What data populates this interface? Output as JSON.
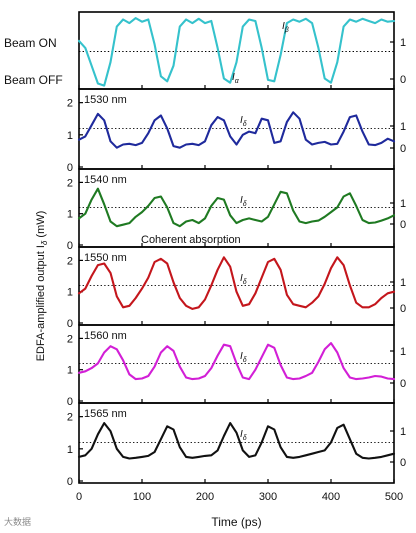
{
  "chart_data": {
    "type": "line",
    "xlabel": "Time (ps)",
    "ylabel": "EDFA-amplified output I",
    "ylabel_sub": "δ",
    "ylabel_unit": " (mW)",
    "xlim": [
      0,
      500
    ],
    "x_ticks": [
      "0",
      "100",
      "200",
      "300",
      "400",
      "500"
    ],
    "annotation": "Coherent absorption",
    "panels": [
      {
        "id": "beam",
        "label_top": "Beam ON",
        "label_bottom": "Beam OFF",
        "series_label": "I",
        "series_label_sub": "β",
        "curve_label": "I",
        "curve_label_sub": "α",
        "color": "#35c2cc",
        "ylim": [
          0,
          1
        ],
        "right_ticks": [
          "1",
          "0"
        ],
        "reference_level": 0.5,
        "x": [
          0,
          10,
          20,
          30,
          40,
          50,
          60,
          70,
          80,
          90,
          100,
          110,
          120,
          130,
          140,
          150,
          160,
          170,
          180,
          190,
          200,
          210,
          220,
          230,
          240,
          250,
          260,
          270,
          280,
          290,
          300,
          310,
          320,
          330,
          340,
          350,
          360,
          370,
          380,
          390,
          400,
          410,
          420,
          430,
          440,
          450,
          460,
          470,
          480,
          490,
          500
        ],
        "values": [
          0.65,
          0.55,
          0.3,
          0.05,
          0.02,
          0.35,
          0.85,
          0.95,
          0.9,
          0.97,
          0.92,
          0.95,
          0.6,
          0.15,
          0.08,
          0.3,
          0.85,
          0.95,
          0.9,
          0.96,
          0.9,
          0.93,
          0.55,
          0.12,
          0.06,
          0.35,
          0.85,
          0.95,
          0.93,
          0.55,
          0.1,
          0.08,
          0.45,
          0.9,
          0.95,
          0.92,
          0.96,
          0.9,
          0.55,
          0.12,
          0.06,
          0.35,
          0.85,
          0.95,
          0.92,
          0.96,
          0.93,
          0.9,
          0.95,
          0.92,
          0.93
        ]
      },
      {
        "id": "1530",
        "wavelength": "1530 nm",
        "series_label": "I",
        "series_label_sub": "δ",
        "color": "#1f2a9c",
        "ylim": [
          0,
          2.3
        ],
        "left_ticks": [
          "2",
          "1",
          "0"
        ],
        "right_ticks": [
          "1",
          "0"
        ],
        "reference_level": 1.2,
        "x": [
          0,
          10,
          20,
          30,
          40,
          50,
          60,
          70,
          80,
          90,
          100,
          110,
          120,
          130,
          140,
          150,
          160,
          170,
          180,
          190,
          200,
          210,
          220,
          230,
          240,
          250,
          260,
          270,
          280,
          290,
          300,
          310,
          320,
          330,
          340,
          350,
          360,
          370,
          380,
          390,
          400,
          410,
          420,
          430,
          440,
          450,
          460,
          470,
          480,
          490,
          500
        ],
        "values": [
          0.85,
          0.95,
          1.3,
          1.65,
          1.45,
          0.8,
          0.6,
          0.7,
          0.72,
          0.68,
          0.75,
          1.05,
          1.45,
          1.6,
          1.2,
          0.65,
          0.6,
          0.7,
          0.72,
          0.68,
          0.8,
          1.3,
          1.55,
          1.45,
          0.95,
          0.7,
          1.0,
          1.1,
          1.05,
          1.5,
          1.45,
          0.75,
          0.8,
          1.4,
          1.7,
          1.5,
          0.85,
          0.7,
          0.75,
          0.78,
          0.7,
          0.72,
          1.1,
          1.55,
          1.6,
          1.1,
          0.7,
          0.68,
          0.75,
          0.88,
          0.8
        ]
      },
      {
        "id": "1540",
        "wavelength": "1540 nm",
        "series_label": "I",
        "series_label_sub": "δ",
        "color": "#1f7a22",
        "ylim": [
          0,
          2.3
        ],
        "left_ticks": [
          "2",
          "1",
          "0"
        ],
        "right_ticks": [
          "1",
          "0"
        ],
        "reference_level": 1.2,
        "x": [
          0,
          10,
          20,
          30,
          40,
          50,
          60,
          70,
          80,
          90,
          100,
          110,
          120,
          130,
          140,
          150,
          160,
          170,
          180,
          190,
          200,
          210,
          220,
          230,
          240,
          250,
          260,
          270,
          280,
          290,
          300,
          310,
          320,
          330,
          340,
          350,
          360,
          370,
          380,
          390,
          400,
          410,
          420,
          430,
          440,
          450,
          460,
          470,
          480,
          490,
          500
        ],
        "values": [
          0.85,
          1.0,
          1.45,
          1.8,
          1.3,
          0.75,
          0.6,
          0.65,
          0.7,
          0.9,
          1.05,
          1.25,
          1.5,
          1.55,
          1.2,
          0.7,
          0.6,
          0.75,
          0.8,
          0.7,
          0.85,
          1.25,
          1.5,
          1.45,
          0.95,
          0.7,
          0.8,
          0.85,
          0.8,
          0.75,
          0.9,
          1.3,
          1.7,
          1.65,
          1.1,
          0.75,
          0.7,
          0.75,
          0.78,
          0.9,
          1.05,
          1.2,
          1.55,
          1.65,
          1.25,
          0.8,
          0.7,
          0.72,
          0.78,
          0.85,
          0.95
        ]
      },
      {
        "id": "1550",
        "wavelength": "1550 nm",
        "series_label": "I",
        "series_label_sub": "δ",
        "color": "#c4161c",
        "ylim": [
          0,
          2.3
        ],
        "left_ticks": [
          "2",
          "1",
          "0"
        ],
        "right_ticks": [
          "1",
          "0"
        ],
        "reference_level": 1.2,
        "x": [
          0,
          10,
          20,
          30,
          40,
          50,
          60,
          70,
          80,
          90,
          100,
          110,
          120,
          130,
          140,
          150,
          160,
          170,
          180,
          190,
          200,
          210,
          220,
          230,
          240,
          250,
          260,
          270,
          280,
          290,
          300,
          310,
          320,
          330,
          340,
          350,
          360,
          370,
          380,
          390,
          400,
          410,
          420,
          430,
          440,
          450,
          460,
          470,
          480,
          490,
          500
        ],
        "values": [
          0.95,
          1.1,
          1.5,
          1.85,
          1.9,
          1.6,
          0.85,
          0.5,
          0.55,
          0.8,
          1.1,
          1.45,
          1.95,
          2.05,
          1.9,
          1.3,
          0.8,
          0.55,
          0.45,
          0.5,
          0.75,
          1.2,
          1.7,
          2.1,
          1.8,
          1.0,
          0.55,
          0.6,
          0.95,
          1.45,
          1.95,
          2.05,
          1.7,
          0.9,
          0.6,
          0.55,
          0.5,
          0.65,
          0.85,
          1.25,
          1.75,
          2.1,
          1.85,
          1.2,
          0.65,
          0.5,
          0.5,
          0.6,
          0.8,
          0.95,
          1.0
        ]
      },
      {
        "id": "1560",
        "wavelength": "1560 nm",
        "series_label": "I",
        "series_label_sub": "δ",
        "color": "#d21fd6",
        "ylim": [
          0,
          2.3
        ],
        "left_ticks": [
          "2",
          "1",
          "0"
        ],
        "right_ticks": [
          "1",
          "0"
        ],
        "reference_level": 1.2,
        "x": [
          0,
          10,
          20,
          30,
          40,
          50,
          60,
          70,
          80,
          90,
          100,
          110,
          120,
          130,
          140,
          150,
          160,
          170,
          180,
          190,
          200,
          210,
          220,
          230,
          240,
          250,
          260,
          270,
          280,
          290,
          300,
          310,
          320,
          330,
          340,
          350,
          360,
          370,
          380,
          390,
          400,
          410,
          420,
          430,
          440,
          450,
          460,
          470,
          480,
          490,
          500
        ],
        "values": [
          0.9,
          0.95,
          1.05,
          1.2,
          1.55,
          1.75,
          1.65,
          1.3,
          0.85,
          0.7,
          0.72,
          0.8,
          1.1,
          1.55,
          1.75,
          1.6,
          1.1,
          0.75,
          0.7,
          0.72,
          0.8,
          1.05,
          1.45,
          1.8,
          1.75,
          1.2,
          0.75,
          0.7,
          1.0,
          1.4,
          1.8,
          1.7,
          1.15,
          0.75,
          0.7,
          0.72,
          0.8,
          0.9,
          1.25,
          1.65,
          1.85,
          1.55,
          1.05,
          0.75,
          0.7,
          0.72,
          0.75,
          0.8,
          0.78,
          0.72,
          0.7
        ]
      },
      {
        "id": "1565",
        "wavelength": "1565 nm",
        "series_label": "I",
        "series_label_sub": "δ",
        "color": "#111111",
        "ylim": [
          0,
          2.3
        ],
        "left_ticks": [
          "2",
          "1",
          "0"
        ],
        "right_ticks": [
          "1",
          "0"
        ],
        "reference_level": 1.2,
        "x": [
          0,
          10,
          20,
          30,
          40,
          50,
          60,
          70,
          80,
          90,
          100,
          110,
          120,
          130,
          140,
          150,
          160,
          170,
          180,
          190,
          200,
          210,
          220,
          230,
          240,
          250,
          260,
          270,
          280,
          290,
          300,
          310,
          320,
          330,
          340,
          350,
          360,
          370,
          380,
          390,
          400,
          410,
          420,
          430,
          440,
          450,
          460,
          470,
          480,
          490,
          500
        ],
        "values": [
          0.75,
          0.8,
          1.0,
          1.45,
          1.8,
          1.55,
          1.0,
          0.75,
          0.7,
          0.72,
          0.75,
          0.78,
          0.9,
          1.3,
          1.7,
          1.6,
          1.05,
          0.75,
          0.72,
          0.75,
          0.78,
          0.8,
          0.95,
          1.4,
          1.8,
          1.5,
          0.95,
          0.75,
          0.8,
          1.2,
          1.7,
          1.6,
          1.05,
          0.75,
          0.72,
          0.75,
          0.8,
          0.85,
          0.9,
          0.95,
          1.2,
          1.65,
          1.75,
          1.3,
          0.85,
          0.72,
          0.7,
          0.72,
          0.75,
          0.8,
          0.85
        ]
      }
    ]
  },
  "watermark": "大数据"
}
